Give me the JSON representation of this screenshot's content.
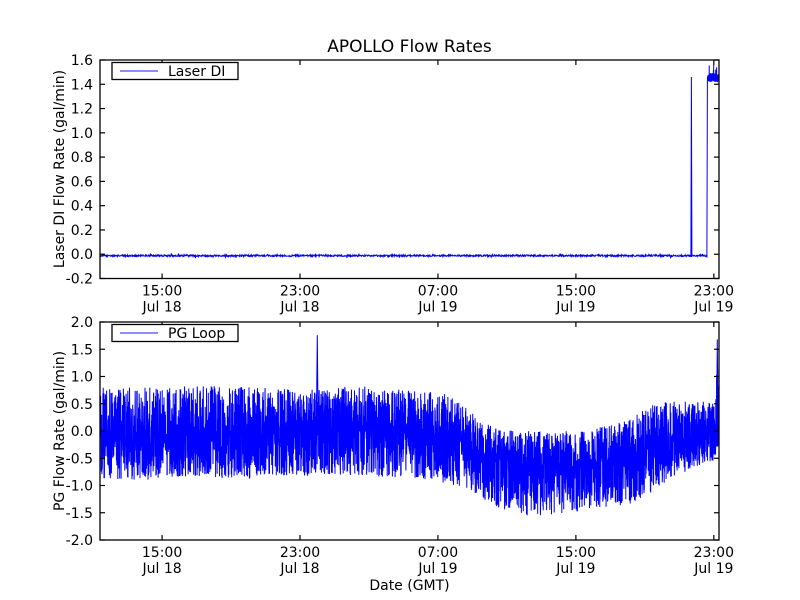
{
  "figure": {
    "title": "APOLLO Flow Rates",
    "background": "#ffffff",
    "axes_color": "#000000",
    "text_color": "#000000",
    "series_color": "#0000ff"
  },
  "x_axis": {
    "label": "Date (GMT)",
    "domain_hours": [
      11.4,
      47.3
    ],
    "ticks": [
      {
        "hour": 15,
        "line1": "15:00",
        "line2": "Jul 18"
      },
      {
        "hour": 23,
        "line1": "23:00",
        "line2": "Jul 18"
      },
      {
        "hour": 31,
        "line1": "07:00",
        "line2": "Jul 19"
      },
      {
        "hour": 39,
        "line1": "15:00",
        "line2": "Jul 19"
      },
      {
        "hour": 47,
        "line1": "23:00",
        "line2": "Jul 19"
      }
    ]
  },
  "chart_data": [
    {
      "type": "line",
      "name": "Laser DI",
      "title": "APOLLO Flow Rates",
      "ylabel": "Laser DI Flow Rate (gal/min)",
      "legend": {
        "label": "Laser DI",
        "position": "upper left"
      },
      "line_color": "#0000ff",
      "ylim": [
        -0.2,
        1.6
      ],
      "ytick_values": [
        -0.2,
        0.0,
        0.2,
        0.4,
        0.6,
        0.8,
        1.0,
        1.2,
        1.4,
        1.6
      ],
      "ytick_labels": [
        "-0.2",
        "0.0",
        "0.2",
        "0.4",
        "0.6",
        "0.8",
        "1.0",
        "1.2",
        "1.4",
        "1.6"
      ],
      "grid": false,
      "series_model": {
        "comment_units": "t in hours since Jul 18 00:00 GMT",
        "segments": [
          {
            "t0": 11.4,
            "t1": 46.62,
            "mean": -0.012,
            "noise": 0.007,
            "step": 0.02
          },
          {
            "t0": 46.63,
            "t1": 47.28,
            "mean": 1.455,
            "noise": 0.038,
            "step": 0.004
          }
        ],
        "spikes": [
          {
            "t": 45.7,
            "peak": 1.46,
            "width": 0.06
          }
        ]
      }
    },
    {
      "type": "line",
      "name": "PG Loop",
      "ylabel": "PG Flow Rate (gal/min)",
      "legend": {
        "label": "PG Loop",
        "position": "upper left"
      },
      "line_color": "#0000ff",
      "ylim": [
        -2.0,
        2.0
      ],
      "ytick_values": [
        -2.0,
        -1.5,
        -1.0,
        -0.5,
        0.0,
        0.5,
        1.0,
        1.5,
        2.0
      ],
      "ytick_labels": [
        "-2.0",
        "-1.5",
        "-1.0",
        "-0.5",
        "0.0",
        "0.5",
        "1.0",
        "1.5",
        "2.0"
      ],
      "grid": false,
      "series_model": {
        "comment_units": "envelope rows: [t_hours, center, up_amplitude, down_amplitude]",
        "envelope": [
          [
            11.4,
            -0.05,
            0.86,
            0.82
          ],
          [
            14.0,
            -0.05,
            0.85,
            0.85
          ],
          [
            17.0,
            -0.02,
            0.85,
            0.82
          ],
          [
            20.0,
            -0.05,
            0.86,
            0.84
          ],
          [
            23.0,
            -0.05,
            0.8,
            0.78
          ],
          [
            25.0,
            0.0,
            0.8,
            0.8
          ],
          [
            27.0,
            0.0,
            0.82,
            0.82
          ],
          [
            29.5,
            -0.05,
            0.8,
            0.84
          ],
          [
            31.5,
            -0.1,
            0.8,
            0.86
          ],
          [
            33.0,
            -0.3,
            0.64,
            0.86
          ],
          [
            34.5,
            -0.5,
            0.52,
            0.92
          ],
          [
            36.0,
            -0.62,
            0.62,
            0.94
          ],
          [
            38.0,
            -0.65,
            0.64,
            0.9
          ],
          [
            40.0,
            -0.58,
            0.62,
            0.86
          ],
          [
            42.0,
            -0.5,
            0.7,
            0.86
          ],
          [
            43.5,
            -0.28,
            0.78,
            0.82
          ],
          [
            44.5,
            -0.15,
            0.72,
            0.72
          ],
          [
            45.5,
            -0.1,
            0.64,
            0.62
          ],
          [
            46.5,
            -0.02,
            0.56,
            0.56
          ],
          [
            47.05,
            0.0,
            0.55,
            0.55
          ],
          [
            47.3,
            0.5,
            1.15,
            0.6
          ]
        ],
        "step": 0.008,
        "spikes": [
          {
            "t": 24.0,
            "peak": 1.76,
            "width": 0.1
          },
          {
            "t": 47.2,
            "peak": 1.68,
            "width": 0.1
          }
        ]
      }
    }
  ]
}
